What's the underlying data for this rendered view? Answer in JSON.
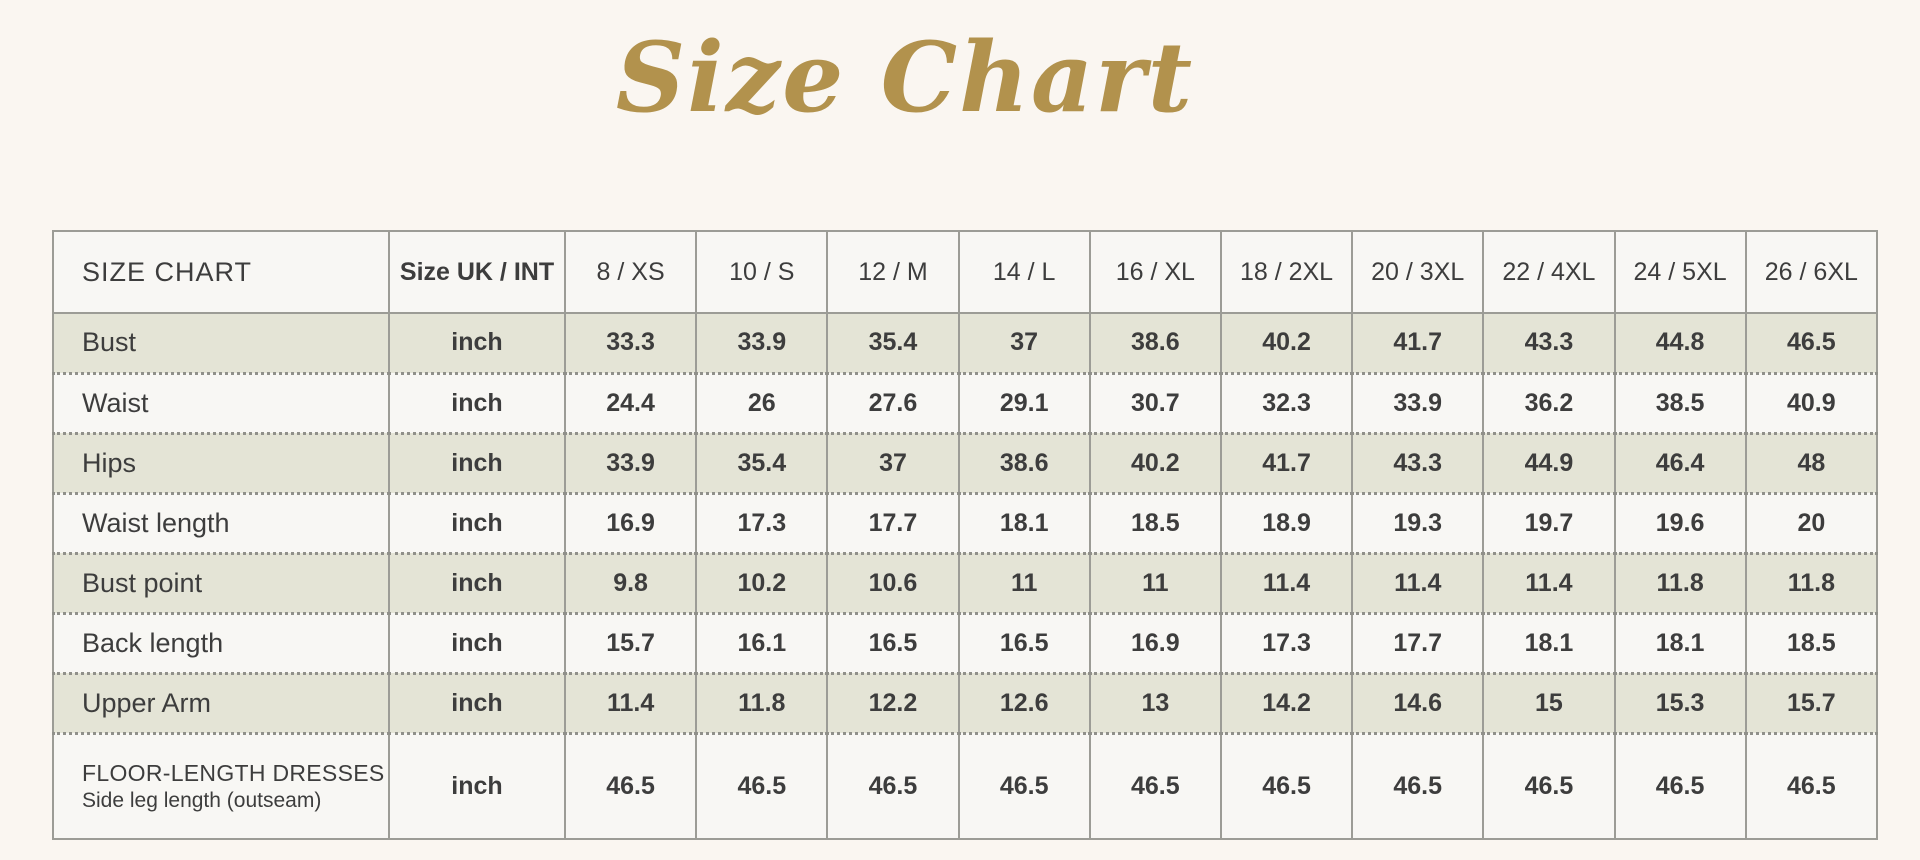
{
  "page": {
    "title": "Size Chart"
  },
  "colors": {
    "title_gold": "#b2924d",
    "row_stripe": "#e4e4d6",
    "cell_white": "#f8f7f4",
    "page_background": "#faf6f1",
    "border_gray": "#9c9c96",
    "text_dark": "#3d3d3d"
  },
  "chart_data": {
    "type": "table",
    "title": "Size Chart",
    "corner_label": "SIZE CHART",
    "unit_column_header": "Size UK / INT",
    "size_columns": [
      "8 / XS",
      "10 / S",
      "12 / M",
      "14 / L",
      "16 / XL",
      "18 / 2XL",
      "20 / 3XL",
      "22 / 4XL",
      "24 / 5XL",
      "26 / 6XL"
    ],
    "rows": [
      {
        "label": "Bust",
        "sublabel": "",
        "unit": "inch",
        "values": [
          "33.3",
          "33.9",
          "35.4",
          "37",
          "38.6",
          "40.2",
          "41.7",
          "43.3",
          "44.8",
          "46.5"
        ]
      },
      {
        "label": "Waist",
        "sublabel": "",
        "unit": "inch",
        "values": [
          "24.4",
          "26",
          "27.6",
          "29.1",
          "30.7",
          "32.3",
          "33.9",
          "36.2",
          "38.5",
          "40.9"
        ]
      },
      {
        "label": "Hips",
        "sublabel": "",
        "unit": "inch",
        "values": [
          "33.9",
          "35.4",
          "37",
          "38.6",
          "40.2",
          "41.7",
          "43.3",
          "44.9",
          "46.4",
          "48"
        ]
      },
      {
        "label": "Waist length",
        "sublabel": "",
        "unit": "inch",
        "values": [
          "16.9",
          "17.3",
          "17.7",
          "18.1",
          "18.5",
          "18.9",
          "19.3",
          "19.7",
          "19.6",
          "20"
        ]
      },
      {
        "label": "Bust point",
        "sublabel": "",
        "unit": "inch",
        "values": [
          "9.8",
          "10.2",
          "10.6",
          "11",
          "11",
          "11.4",
          "11.4",
          "11.4",
          "11.8",
          "11.8"
        ]
      },
      {
        "label": "Back length",
        "sublabel": "",
        "unit": "inch",
        "values": [
          "15.7",
          "16.1",
          "16.5",
          "16.5",
          "16.9",
          "17.3",
          "17.7",
          "18.1",
          "18.1",
          "18.5"
        ]
      },
      {
        "label": "Upper Arm",
        "sublabel": "",
        "unit": "inch",
        "values": [
          "11.4",
          "11.8",
          "12.2",
          "12.6",
          "13",
          "14.2",
          "14.6",
          "15",
          "15.3",
          "15.7"
        ]
      },
      {
        "label": "FLOOR-LENGTH DRESSES",
        "sublabel": "Side leg length (outseam)",
        "unit": "inch",
        "values": [
          "46.5",
          "46.5",
          "46.5",
          "46.5",
          "46.5",
          "46.5",
          "46.5",
          "46.5",
          "46.5",
          "46.5"
        ]
      }
    ]
  }
}
